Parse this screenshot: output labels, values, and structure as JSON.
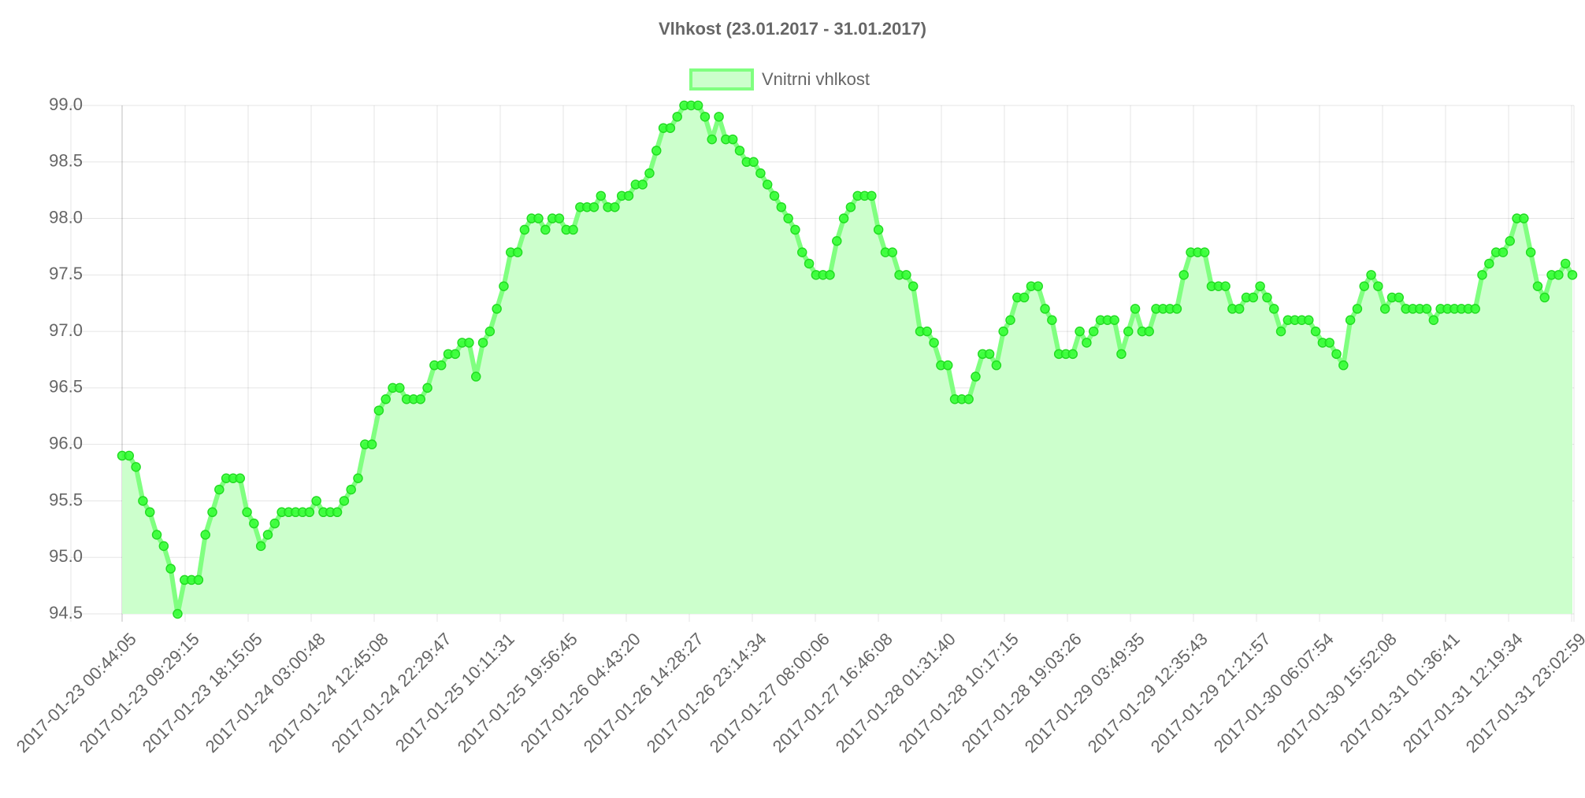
{
  "chart_data": {
    "type": "line",
    "title": "Vlhkost (23.01.2017 - 31.01.2017)",
    "xlabel": "",
    "ylabel": "",
    "ylim": [
      94.5,
      99.0
    ],
    "yticks": [
      "99.0",
      "98.5",
      "98.0",
      "97.5",
      "97.0",
      "96.5",
      "96.0",
      "95.5",
      "95.0",
      "94.5"
    ],
    "xticks": [
      "2017-01-23 00:44:05",
      "2017-01-23 09:29:15",
      "2017-01-23 18:15:05",
      "2017-01-24 03:00:48",
      "2017-01-24 12:45:08",
      "2017-01-24 22:29:47",
      "2017-01-25 10:11:31",
      "2017-01-25 19:56:45",
      "2017-01-26 04:43:20",
      "2017-01-26 14:28:27",
      "2017-01-26 23:14:34",
      "2017-01-27 08:00:06",
      "2017-01-27 16:46:08",
      "2017-01-28 01:31:40",
      "2017-01-28 10:17:15",
      "2017-01-28 19:03:26",
      "2017-01-29 03:49:35",
      "2017-01-29 12:35:43",
      "2017-01-29 21:21:57",
      "2017-01-30 06:07:54",
      "2017-01-30 15:52:08",
      "2017-01-31 01:36:41",
      "2017-01-31 12:19:34",
      "2017-01-31 23:02:59"
    ],
    "grid": true,
    "legend": "top-center",
    "series": [
      {
        "name": "Vnitrni vhlkost",
        "color": "#33ff33",
        "fill": "#ccffcc",
        "values": [
          95.9,
          95.9,
          95.8,
          95.5,
          95.4,
          95.2,
          95.1,
          94.9,
          94.5,
          94.8,
          94.8,
          94.8,
          95.2,
          95.4,
          95.6,
          95.7,
          95.7,
          95.7,
          95.4,
          95.3,
          95.1,
          95.2,
          95.3,
          95.4,
          95.4,
          95.4,
          95.4,
          95.4,
          95.5,
          95.4,
          95.4,
          95.4,
          95.5,
          95.6,
          95.7,
          96.0,
          96.0,
          96.3,
          96.4,
          96.5,
          96.5,
          96.4,
          96.4,
          96.4,
          96.5,
          96.7,
          96.7,
          96.8,
          96.8,
          96.9,
          96.9,
          96.6,
          96.9,
          97.0,
          97.2,
          97.4,
          97.7,
          97.7,
          97.9,
          98.0,
          98.0,
          97.9,
          98.0,
          98.0,
          97.9,
          97.9,
          98.1,
          98.1,
          98.1,
          98.2,
          98.1,
          98.1,
          98.2,
          98.2,
          98.3,
          98.3,
          98.4,
          98.6,
          98.8,
          98.8,
          98.9,
          99.0,
          99.0,
          99.0,
          98.9,
          98.7,
          98.9,
          98.7,
          98.7,
          98.6,
          98.5,
          98.5,
          98.4,
          98.3,
          98.2,
          98.1,
          98.0,
          97.9,
          97.7,
          97.6,
          97.5,
          97.5,
          97.5,
          97.8,
          98.0,
          98.1,
          98.2,
          98.2,
          98.2,
          97.9,
          97.7,
          97.7,
          97.5,
          97.5,
          97.4,
          97.0,
          97.0,
          96.9,
          96.7,
          96.7,
          96.4,
          96.4,
          96.4,
          96.6,
          96.8,
          96.8,
          96.7,
          97.0,
          97.1,
          97.3,
          97.3,
          97.4,
          97.4,
          97.2,
          97.1,
          96.8,
          96.8,
          96.8,
          97.0,
          96.9,
          97.0,
          97.1,
          97.1,
          97.1,
          96.8,
          97.0,
          97.2,
          97.0,
          97.0,
          97.2,
          97.2,
          97.2,
          97.2,
          97.5,
          97.7,
          97.7,
          97.7,
          97.4,
          97.4,
          97.4,
          97.2,
          97.2,
          97.3,
          97.3,
          97.4,
          97.3,
          97.2,
          97.0,
          97.1,
          97.1,
          97.1,
          97.1,
          97.0,
          96.9,
          96.9,
          96.8,
          96.7,
          97.1,
          97.2,
          97.4,
          97.5,
          97.4,
          97.2,
          97.3,
          97.3,
          97.2,
          97.2,
          97.2,
          97.2,
          97.1,
          97.2,
          97.2,
          97.2,
          97.2,
          97.2,
          97.2,
          97.5,
          97.6,
          97.7,
          97.7,
          97.8,
          98.0,
          98.0,
          97.7,
          97.4,
          97.3,
          97.5,
          97.5,
          97.6,
          97.5
        ]
      }
    ]
  }
}
